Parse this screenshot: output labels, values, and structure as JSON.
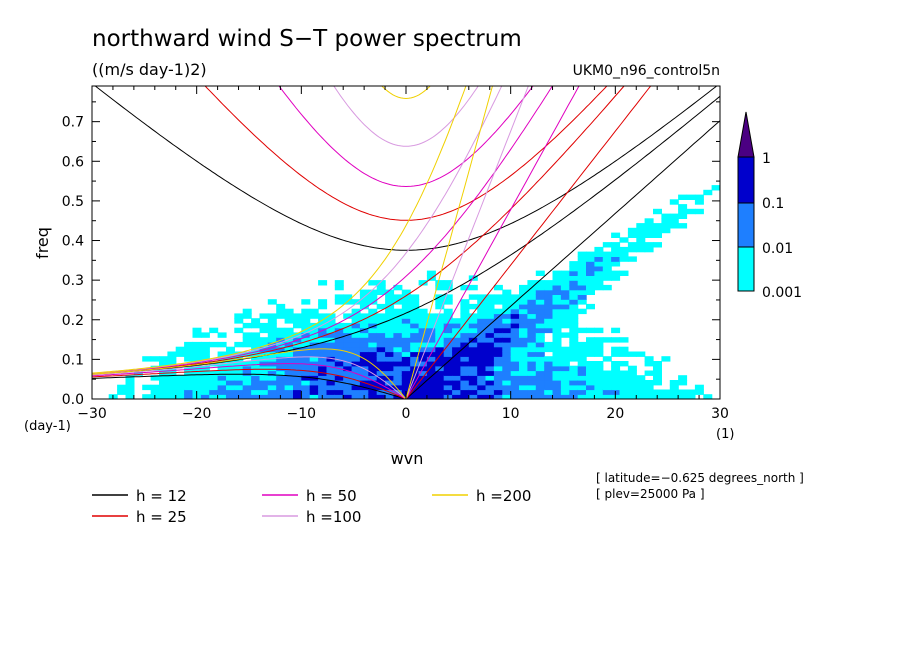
{
  "chart_data": {
    "type": "heatmap",
    "title": "northward wind S−T power spectrum",
    "units": "((m/s day-1)2)",
    "model": "UKM0_n96_control5n",
    "xlabel": "wvn",
    "ylabel": "freq",
    "x_unit": "(1)",
    "y_unit": "(day-1)",
    "xlim": [
      -30,
      30
    ],
    "ylim": [
      0,
      0.79
    ],
    "x_ticks": [
      "−30",
      "−20",
      "−10",
      "0",
      "10",
      "20",
      "30"
    ],
    "y_ticks": [
      "0.0",
      "0.1",
      "0.2",
      "0.3",
      "0.4",
      "0.5",
      "0.6",
      "0.7"
    ],
    "colorbar": {
      "levels": [
        "0.001",
        "0.01",
        "0.1",
        "1"
      ],
      "colors": [
        "#00ffff",
        "#1e7fff",
        "#0000cc",
        "#4b0082"
      ]
    },
    "dispersion_curves": [
      {
        "label": "h = 12",
        "h": 12,
        "color": "#000000"
      },
      {
        "label": "h = 25",
        "h": 25,
        "color": "#e00000"
      },
      {
        "label": "h = 50",
        "h": 50,
        "color": "#e000c0"
      },
      {
        "label": "h =100",
        "h": 100,
        "color": "#d89ae0"
      },
      {
        "label": "h =200",
        "h": 200,
        "color": "#f0d000"
      }
    ],
    "annotations": [
      "[ latitude=−0.625 degrees_north ]",
      "[ plev=25000 Pa ]"
    ]
  }
}
